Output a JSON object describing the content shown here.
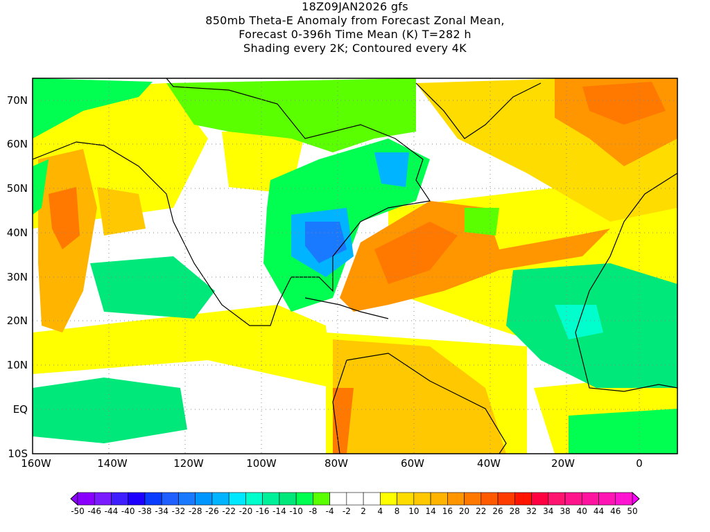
{
  "title": {
    "line1": "18Z09JAN2026 gfs",
    "line2": "850mb Theta-E Anomaly from Forecast Zonal Mean,",
    "line3": "Forecast 0-396h Time Mean (K) T=282 h",
    "line4": "Shading every 2K; Contoured every 4K"
  },
  "axes": {
    "lon_labels": [
      "160W",
      "140W",
      "120W",
      "100W",
      "80W",
      "60W",
      "40W",
      "20W",
      "0"
    ],
    "lat_labels": [
      "70N",
      "60N",
      "50N",
      "40N",
      "30N",
      "20N",
      "10N",
      "EQ",
      "10S"
    ]
  },
  "colorbar": {
    "labels": [
      "-50",
      "-46",
      "-44",
      "-40",
      "-38",
      "-34",
      "-32",
      "-28",
      "-26",
      "-22",
      "-20",
      "-16",
      "-14",
      "-10",
      "-8",
      "-4",
      "-2",
      "2",
      "4",
      "8",
      "10",
      "14",
      "16",
      "20",
      "22",
      "26",
      "28",
      "32",
      "34",
      "38",
      "40",
      "44",
      "46",
      "50"
    ],
    "colors": [
      "#8a00ff",
      "#7a1aff",
      "#3f1fff",
      "#1e00ff",
      "#0a3cff",
      "#1f5eff",
      "#1a7aff",
      "#0096ff",
      "#00b4ff",
      "#00e8ff",
      "#00ffcc",
      "#00f09a",
      "#00e87a",
      "#00ff50",
      "#5aff00",
      "#ffffff",
      "#ffffff",
      "#ffffff",
      "#ffff00",
      "#ffdc00",
      "#ffc800",
      "#ffb400",
      "#ff9600",
      "#ff7800",
      "#ff5a00",
      "#ff3c00",
      "#ff1400",
      "#ff0040",
      "#ff1470",
      "#ff148c",
      "#ff14a0",
      "#ff14b4",
      "#ff14d2"
    ],
    "under_color": "#8c00ff",
    "over_color": "#ff00ff"
  }
}
